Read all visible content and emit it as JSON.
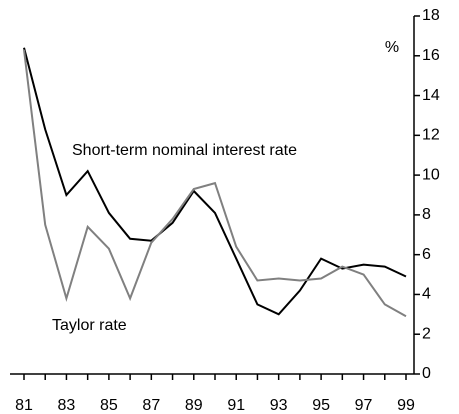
{
  "chart_data": {
    "type": "line",
    "unit_label": "%",
    "categories": [
      "81",
      null,
      "83",
      null,
      "85",
      null,
      "87",
      null,
      "89",
      null,
      "91",
      null,
      "93",
      null,
      "95",
      null,
      "97",
      null,
      "99"
    ],
    "series": [
      {
        "name": "Short-term nominal interest rate",
        "color": "#000000",
        "values": [
          16.4,
          12.3,
          9.0,
          10.2,
          8.1,
          6.8,
          6.7,
          7.6,
          9.2,
          8.1,
          5.8,
          3.5,
          3.0,
          4.2,
          5.8,
          5.3,
          5.5,
          5.4,
          4.9
        ]
      },
      {
        "name": "Taylor rate",
        "color": "#808080",
        "values": [
          16.3,
          7.5,
          3.8,
          7.4,
          6.3,
          3.8,
          6.6,
          7.8,
          9.3,
          9.6,
          6.4,
          4.7,
          4.8,
          4.7,
          4.8,
          5.4,
          5.0,
          3.5,
          2.9
        ]
      }
    ],
    "ylim": [
      0,
      18
    ],
    "yticks": [
      0,
      2,
      4,
      6,
      8,
      10,
      12,
      14,
      16,
      18
    ],
    "y_axis_side": "right"
  }
}
